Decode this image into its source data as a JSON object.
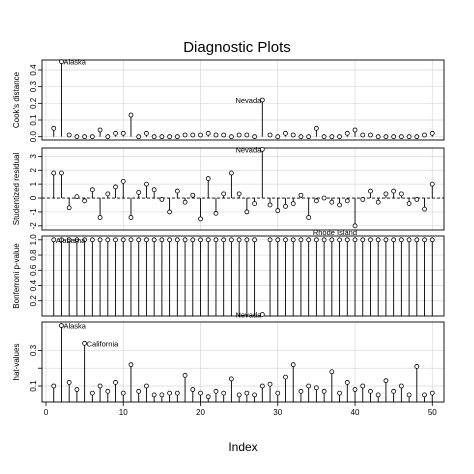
{
  "title": "Diagnostic Plots",
  "xlabel": "Index",
  "chart_data": [
    {
      "type": "scatter",
      "ylabel": "Cook's distance",
      "xlim": [
        0,
        51
      ],
      "ylim": [
        -0.02,
        0.46
      ],
      "yticks": [
        0.0,
        0.1,
        0.2,
        0.3,
        0.4
      ],
      "ytick_labels": [
        "0.0",
        "0.1",
        "0.2",
        "0.3",
        "0.4"
      ],
      "x": [
        1,
        2,
        3,
        4,
        5,
        6,
        7,
        8,
        9,
        10,
        11,
        12,
        13,
        14,
        15,
        16,
        17,
        18,
        19,
        20,
        21,
        22,
        23,
        24,
        25,
        26,
        27,
        28,
        29,
        30,
        31,
        32,
        33,
        34,
        35,
        36,
        37,
        38,
        39,
        40,
        41,
        42,
        43,
        44,
        45,
        46,
        47,
        48,
        49,
        50
      ],
      "y": [
        0.05,
        0.45,
        0.01,
        0.0,
        0.0,
        0.0,
        0.04,
        0.0,
        0.02,
        0.02,
        0.13,
        0.0,
        0.02,
        0.0,
        0.0,
        0.0,
        0.0,
        0.01,
        0.01,
        0.01,
        0.02,
        0.01,
        0.01,
        0.0,
        0.01,
        0.01,
        0.0,
        0.22,
        0.01,
        0.0,
        0.02,
        0.01,
        0.0,
        0.0,
        0.05,
        0.0,
        0.0,
        0.0,
        0.02,
        0.04,
        0.01,
        0.01,
        0.0,
        0.0,
        0.0,
        0.0,
        0.0,
        0.0,
        0.01,
        0.02
      ],
      "annotations": [
        {
          "x": 2,
          "label": "Alaska",
          "side": "right"
        },
        {
          "x": 28,
          "label": "Nevada",
          "side": "left"
        }
      ]
    },
    {
      "type": "scatter",
      "ylabel": "Studentized residual",
      "xlim": [
        0,
        51
      ],
      "ylim": [
        -2.3,
        3.6
      ],
      "yticks": [
        -2,
        -1,
        0,
        1,
        2,
        3
      ],
      "ytick_labels": [
        "-2",
        "-1",
        "0",
        "1",
        "2",
        "3"
      ],
      "reference_line": 0,
      "x": [
        1,
        2,
        3,
        4,
        5,
        6,
        7,
        8,
        9,
        10,
        11,
        12,
        13,
        14,
        15,
        16,
        17,
        18,
        19,
        20,
        21,
        22,
        23,
        24,
        25,
        26,
        27,
        28,
        29,
        30,
        31,
        32,
        33,
        34,
        35,
        36,
        37,
        38,
        39,
        40,
        41,
        42,
        43,
        44,
        45,
        46,
        47,
        48,
        49,
        50
      ],
      "y": [
        1.8,
        1.8,
        -0.7,
        0.1,
        -0.2,
        0.6,
        -1.4,
        0.3,
        0.8,
        1.2,
        -1.4,
        0.4,
        1.0,
        0.6,
        -0.1,
        -1.0,
        0.5,
        -0.3,
        0.2,
        -1.5,
        1.4,
        -1.1,
        0.3,
        1.8,
        0.3,
        -1.0,
        -0.4,
        3.5,
        -0.5,
        -0.9,
        -0.6,
        -0.4,
        0.2,
        -1.4,
        -0.2,
        0.0,
        -0.3,
        -0.5,
        -0.2,
        -2.0,
        -0.1,
        0.5,
        -0.3,
        0.3,
        0.5,
        0.3,
        -0.4,
        -0.1,
        -0.8,
        1.0
      ],
      "annotations": [
        {
          "x": 28,
          "label": "Nevada",
          "side": "left"
        },
        {
          "x": 40,
          "label": "Rhode Island",
          "side": "left-below"
        }
      ]
    },
    {
      "type": "scatter",
      "ylabel": "Bonferroni p-value",
      "xlim": [
        0,
        51
      ],
      "ylim": [
        0.0,
        1.05
      ],
      "yticks": [
        0.2,
        0.4,
        0.6,
        0.8,
        1.0
      ],
      "ytick_labels": [
        "0.2",
        "0.4",
        "0.6",
        "0.8",
        "1.0"
      ],
      "x": [
        1,
        2,
        3,
        4,
        5,
        6,
        7,
        8,
        9,
        10,
        11,
        12,
        13,
        14,
        15,
        16,
        17,
        18,
        19,
        20,
        21,
        22,
        23,
        24,
        25,
        26,
        27,
        28,
        29,
        30,
        31,
        32,
        33,
        34,
        35,
        36,
        37,
        38,
        39,
        40,
        41,
        42,
        43,
        44,
        45,
        46,
        47,
        48,
        49,
        50
      ],
      "y": [
        1,
        1,
        1,
        1,
        1,
        1,
        1,
        1,
        1,
        1,
        1,
        1,
        1,
        1,
        1,
        1,
        1,
        1,
        1,
        1,
        1,
        1,
        1,
        1,
        1,
        1,
        1,
        0.02,
        1,
        1,
        1,
        1,
        1,
        1,
        1,
        1,
        1,
        1,
        1,
        1,
        1,
        1,
        1,
        1,
        1,
        1,
        1,
        1,
        1,
        1
      ],
      "annotations": [
        {
          "x": 1,
          "label": "Alabama",
          "side": "right"
        },
        {
          "x": 28,
          "label": "Nevada",
          "side": "left"
        }
      ]
    },
    {
      "type": "scatter",
      "ylabel": "hat-values",
      "xlim": [
        0,
        51
      ],
      "ylim": [
        0.01,
        0.46
      ],
      "yticks": [
        0.1,
        0.2,
        0.3
      ],
      "ytick_labels": [
        "0.1",
        "",
        "0.3"
      ],
      "x": [
        1,
        2,
        3,
        4,
        5,
        6,
        7,
        8,
        9,
        10,
        11,
        12,
        13,
        14,
        15,
        16,
        17,
        18,
        19,
        20,
        21,
        22,
        23,
        24,
        25,
        26,
        27,
        28,
        29,
        30,
        31,
        32,
        33,
        34,
        35,
        36,
        37,
        38,
        39,
        40,
        41,
        42,
        43,
        44,
        45,
        46,
        47,
        48,
        49,
        50
      ],
      "y": [
        0.1,
        0.44,
        0.12,
        0.08,
        0.34,
        0.06,
        0.1,
        0.07,
        0.12,
        0.06,
        0.22,
        0.07,
        0.1,
        0.05,
        0.05,
        0.06,
        0.06,
        0.16,
        0.08,
        0.06,
        0.04,
        0.07,
        0.06,
        0.14,
        0.05,
        0.06,
        0.05,
        0.1,
        0.11,
        0.06,
        0.15,
        0.22,
        0.07,
        0.1,
        0.09,
        0.07,
        0.18,
        0.06,
        0.12,
        0.08,
        0.1,
        0.07,
        0.05,
        0.13,
        0.07,
        0.1,
        0.05,
        0.21,
        0.05,
        0.06
      ],
      "annotations": [
        {
          "x": 2,
          "label": "Alaska",
          "side": "right"
        },
        {
          "x": 5,
          "label": "California",
          "side": "right"
        }
      ]
    }
  ],
  "x_axis": {
    "ticks": [
      0,
      10,
      20,
      30,
      40,
      50
    ],
    "tick_labels": [
      "0",
      "10",
      "20",
      "30",
      "40",
      "50"
    ]
  }
}
